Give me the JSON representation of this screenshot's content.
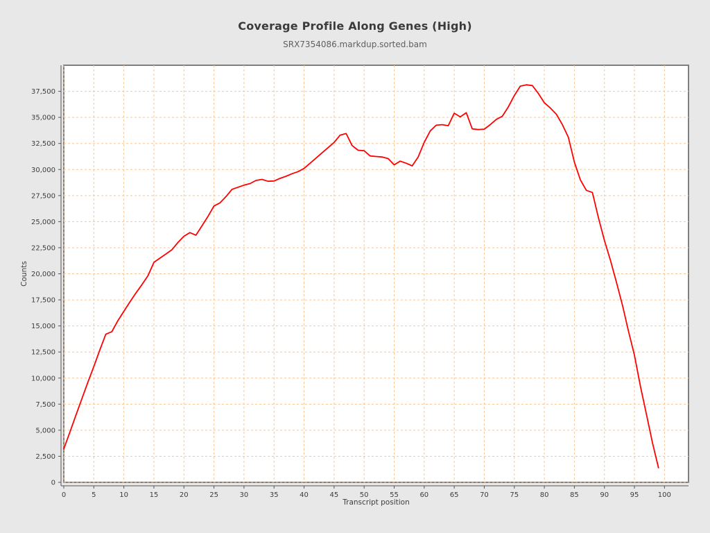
{
  "header": {
    "title": "Coverage Profile Along Genes (High)",
    "subtitle": "SRX7354086.markdup.sorted.bam"
  },
  "chart_data": {
    "type": "line",
    "title": "Coverage Profile Along Genes (High)",
    "subtitle": "SRX7354086.markdup.sorted.bam",
    "xlabel": "Transcript position",
    "ylabel": "Counts",
    "xlim": [
      0,
      104
    ],
    "ylim": [
      0,
      40000
    ],
    "x_ticks": [
      0,
      5,
      10,
      15,
      20,
      25,
      30,
      35,
      40,
      45,
      50,
      55,
      60,
      65,
      70,
      75,
      80,
      85,
      90,
      95,
      100
    ],
    "y_ticks": [
      0,
      2500,
      5000,
      7500,
      10000,
      12500,
      15000,
      17500,
      20000,
      22500,
      25000,
      27500,
      30000,
      32500,
      35000,
      37500
    ],
    "grid": "dashed",
    "legend_position": "none",
    "line_color": "#ff0000",
    "plot_bg": "#ffffff",
    "figure_bg": "#e8e8e8",
    "grid_color": "#f3c69c",
    "frame_color": "#7f7f7f",
    "axis_color": "#545454",
    "series": [
      {
        "name": "SRX7354086.markdup.sorted.bam",
        "x": [
          0,
          1,
          2,
          3,
          4,
          5,
          6,
          7,
          8,
          9,
          10,
          11,
          12,
          13,
          14,
          15,
          16,
          17,
          18,
          19,
          20,
          21,
          22,
          23,
          24,
          25,
          26,
          27,
          28,
          29,
          30,
          31,
          32,
          33,
          34,
          35,
          36,
          37,
          38,
          39,
          40,
          41,
          42,
          43,
          44,
          45,
          46,
          47,
          48,
          49,
          50,
          51,
          52,
          53,
          54,
          55,
          56,
          57,
          58,
          59,
          60,
          61,
          62,
          63,
          64,
          65,
          66,
          67,
          68,
          69,
          70,
          71,
          72,
          73,
          74,
          75,
          76,
          77,
          78,
          79,
          80,
          81,
          82,
          83,
          84,
          85,
          86,
          87,
          88,
          89,
          90,
          91,
          92,
          93,
          94,
          95,
          96,
          97,
          98,
          99
        ],
        "values": [
          3200,
          4800,
          6400,
          8000,
          9600,
          11100,
          12700,
          14200,
          14450,
          15500,
          16400,
          17300,
          18150,
          18950,
          19800,
          21100,
          21500,
          21900,
          22300,
          23000,
          23600,
          23950,
          23700,
          24600,
          25500,
          26500,
          26800,
          27400,
          28100,
          28300,
          28500,
          28650,
          28950,
          29050,
          28870,
          28900,
          29150,
          29350,
          29600,
          29800,
          30100,
          30600,
          31100,
          31600,
          32100,
          32600,
          33300,
          33450,
          32300,
          31850,
          31800,
          31300,
          31250,
          31200,
          31050,
          30450,
          30800,
          30600,
          30350,
          31200,
          32600,
          33700,
          34250,
          34300,
          34200,
          35400,
          35050,
          35450,
          33900,
          33830,
          33870,
          34300,
          34800,
          35100,
          36000,
          37100,
          38000,
          38120,
          38050,
          37300,
          36400,
          35900,
          35300,
          34300,
          33100,
          30700,
          29000,
          28000,
          27800,
          25400,
          23200,
          21300,
          19200,
          17000,
          14500,
          12200,
          9200,
          6500,
          3800,
          1400
        ]
      }
    ]
  }
}
